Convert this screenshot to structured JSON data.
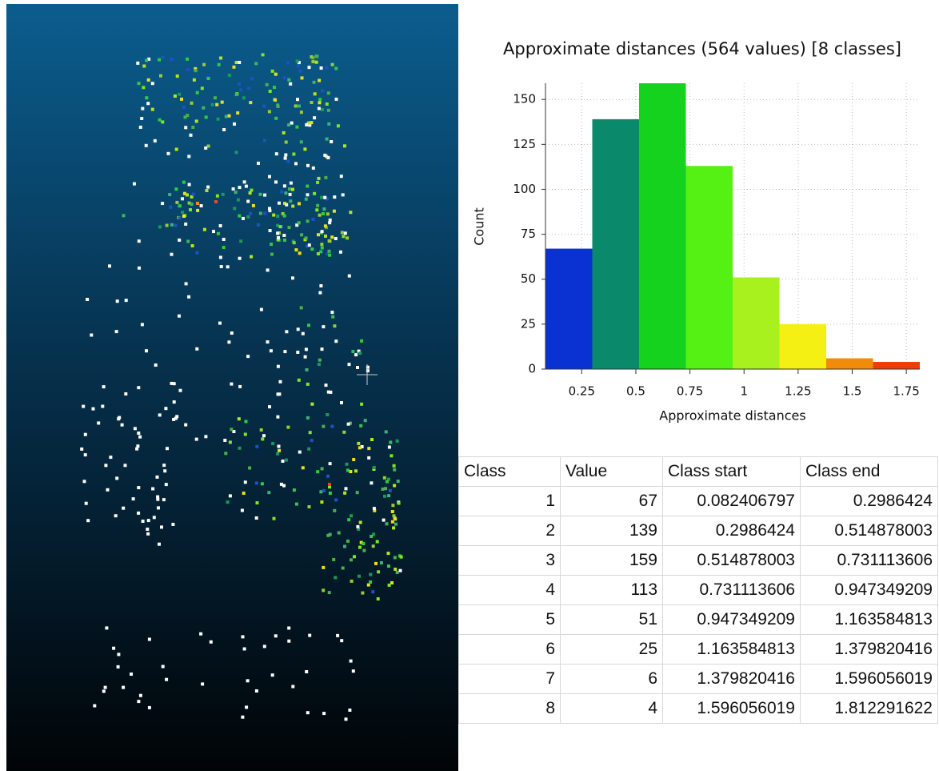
{
  "chart_data": {
    "type": "histogram",
    "title": "Approximate distances (564 values) [8 classes]",
    "x_label": "Approximate distances",
    "y_label": "Count",
    "bins": [
      0.082406797,
      0.2986424,
      0.514878003,
      0.731113606,
      0.947349209,
      1.163584813,
      1.379820416,
      1.596056019,
      1.812291622
    ],
    "values": [
      67,
      139,
      159,
      113,
      51,
      25,
      6,
      4
    ],
    "colors": [
      "#0a32d2",
      "#0a8a6a",
      "#14d21e",
      "#55f014",
      "#a8f01e",
      "#f5f014",
      "#f08c0a",
      "#f03c0a"
    ],
    "xlim": [
      0.082406797,
      1.812291622
    ],
    "xticks": [
      0.25,
      0.5,
      0.75,
      1,
      1.25,
      1.5,
      1.75
    ],
    "ylim": [
      0,
      159
    ],
    "yticks": [
      0,
      25,
      50,
      75,
      100,
      125,
      150
    ],
    "grid": true
  },
  "table": {
    "header": [
      "Class",
      "Value",
      "Class start",
      "Class end"
    ],
    "rows": [
      [
        1,
        67,
        0.082406797,
        0.2986424
      ],
      [
        2,
        139,
        0.2986424,
        0.514878003
      ],
      [
        3,
        159,
        0.514878003,
        0.731113606
      ],
      [
        4,
        113,
        0.731113606,
        0.947349209
      ],
      [
        5,
        51,
        0.947349209,
        1.163584813
      ],
      [
        6,
        25,
        1.163584813,
        1.379820416
      ],
      [
        7,
        6,
        1.379820416,
        1.596056019
      ],
      [
        8,
        4,
        1.596056019,
        1.812291622
      ]
    ]
  }
}
